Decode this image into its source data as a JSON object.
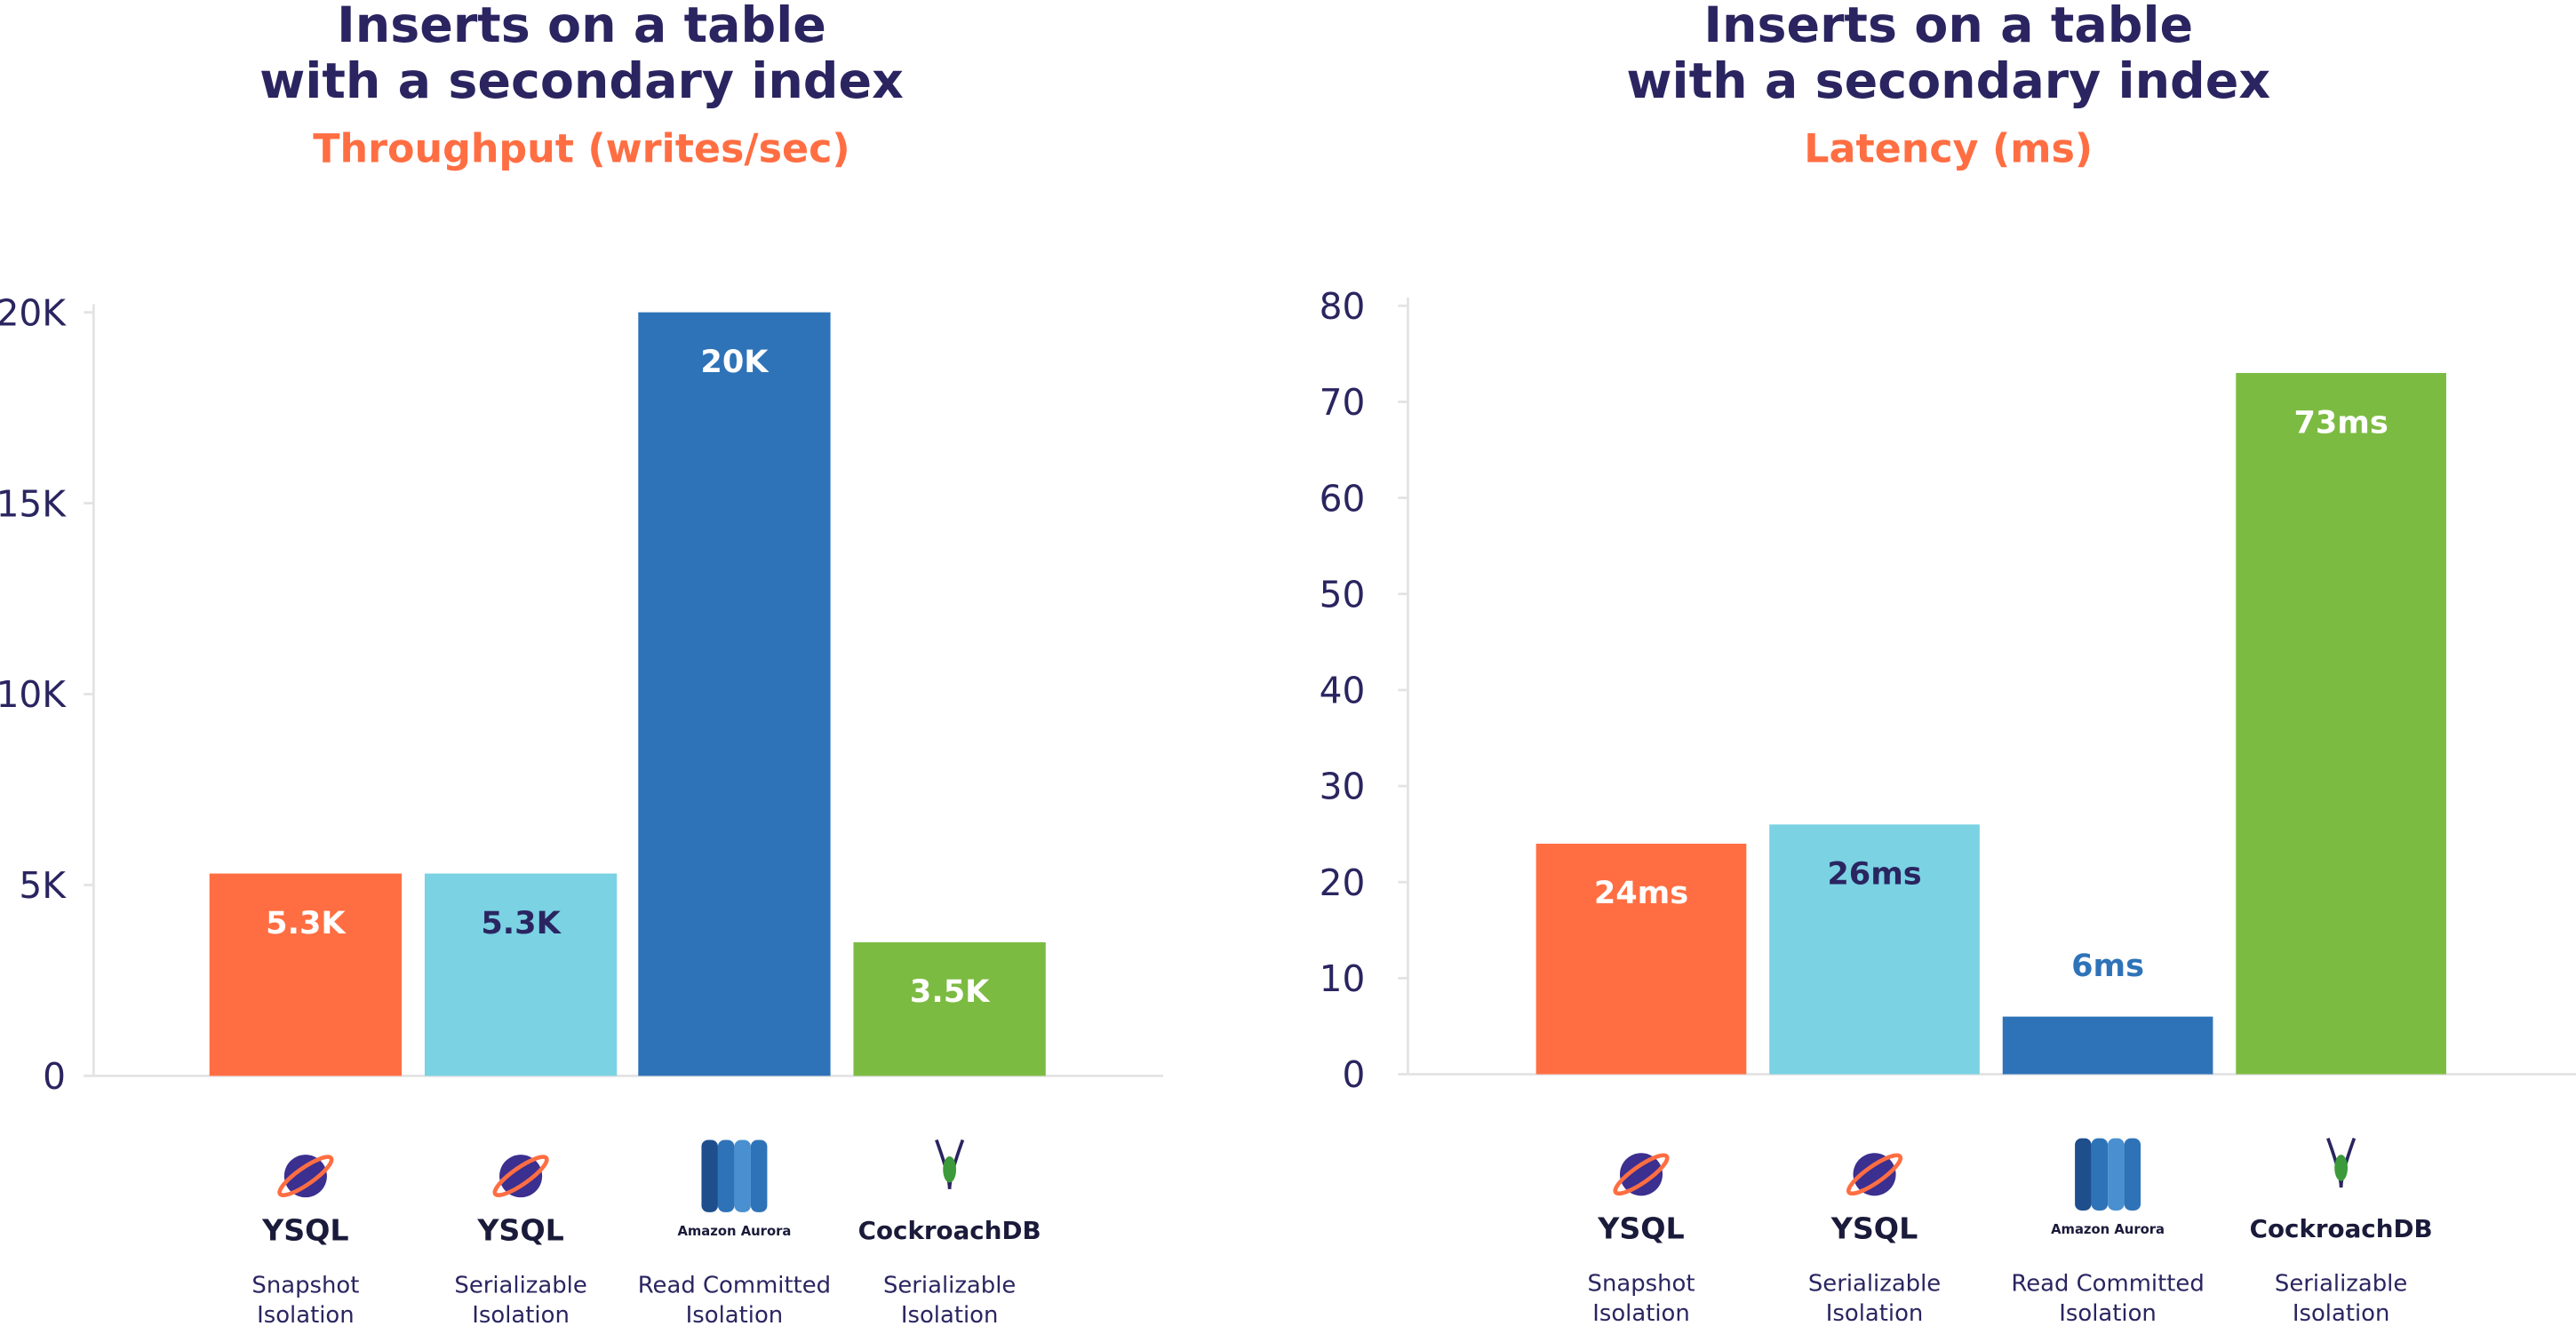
{
  "chart_data": [
    {
      "type": "bar",
      "title": [
        "Inserts on a table",
        "with a secondary index"
      ],
      "subtitle": "Throughput (writes/sec)",
      "brands": [
        "YSQL",
        "YSQL",
        "Amazon Aurora",
        "CockroachDB"
      ],
      "categories": [
        [
          "Snapshot",
          "Isolation"
        ],
        [
          "Serializable",
          "Isolation"
        ],
        [
          "Read Committed",
          "Isolation"
        ],
        [
          "Serializable",
          "Isolation"
        ]
      ],
      "values": [
        5300,
        5300,
        20000,
        3500
      ],
      "value_labels": [
        "5.3K",
        "5.3K",
        "20K",
        "3.5K"
      ],
      "colors": [
        "#ff6e42",
        "#7ad2e3",
        "#2e73b8",
        "#7cbb42"
      ],
      "label_colors": [
        "#ffffff",
        "#2a2560",
        "#ffffff",
        "#ffffff"
      ],
      "ylim": [
        0,
        20000
      ],
      "yticks": [
        0,
        {
          "value": 5000,
          "label": "5K"
        },
        {
          "value": 10000,
          "label": "10K"
        },
        {
          "value": 15000,
          "label": "15K"
        },
        {
          "value": 20000,
          "label": "20K"
        }
      ]
    },
    {
      "type": "bar",
      "title": [
        "Inserts on a table",
        "with a secondary index"
      ],
      "subtitle": "Latency (ms)",
      "brands": [
        "YSQL",
        "YSQL",
        "Amazon Aurora",
        "CockroachDB"
      ],
      "categories": [
        [
          "Snapshot",
          "Isolation"
        ],
        [
          "Serializable",
          "Isolation"
        ],
        [
          "Read Committed",
          "Isolation"
        ],
        [
          "Serializable",
          "Isolation"
        ]
      ],
      "values": [
        24,
        26,
        6,
        73
      ],
      "value_labels": [
        "24ms",
        "26ms",
        "6ms",
        "73ms"
      ],
      "colors": [
        "#ff6e42",
        "#7ad2e3",
        "#2e73b8",
        "#7cbb42"
      ],
      "label_colors": [
        "#ffffff",
        "#2a2560",
        "#2e73b8",
        "#ffffff"
      ],
      "ylim": [
        0,
        80
      ],
      "yticks": [
        0,
        10,
        20,
        30,
        40,
        50,
        60,
        70,
        80
      ]
    }
  ]
}
